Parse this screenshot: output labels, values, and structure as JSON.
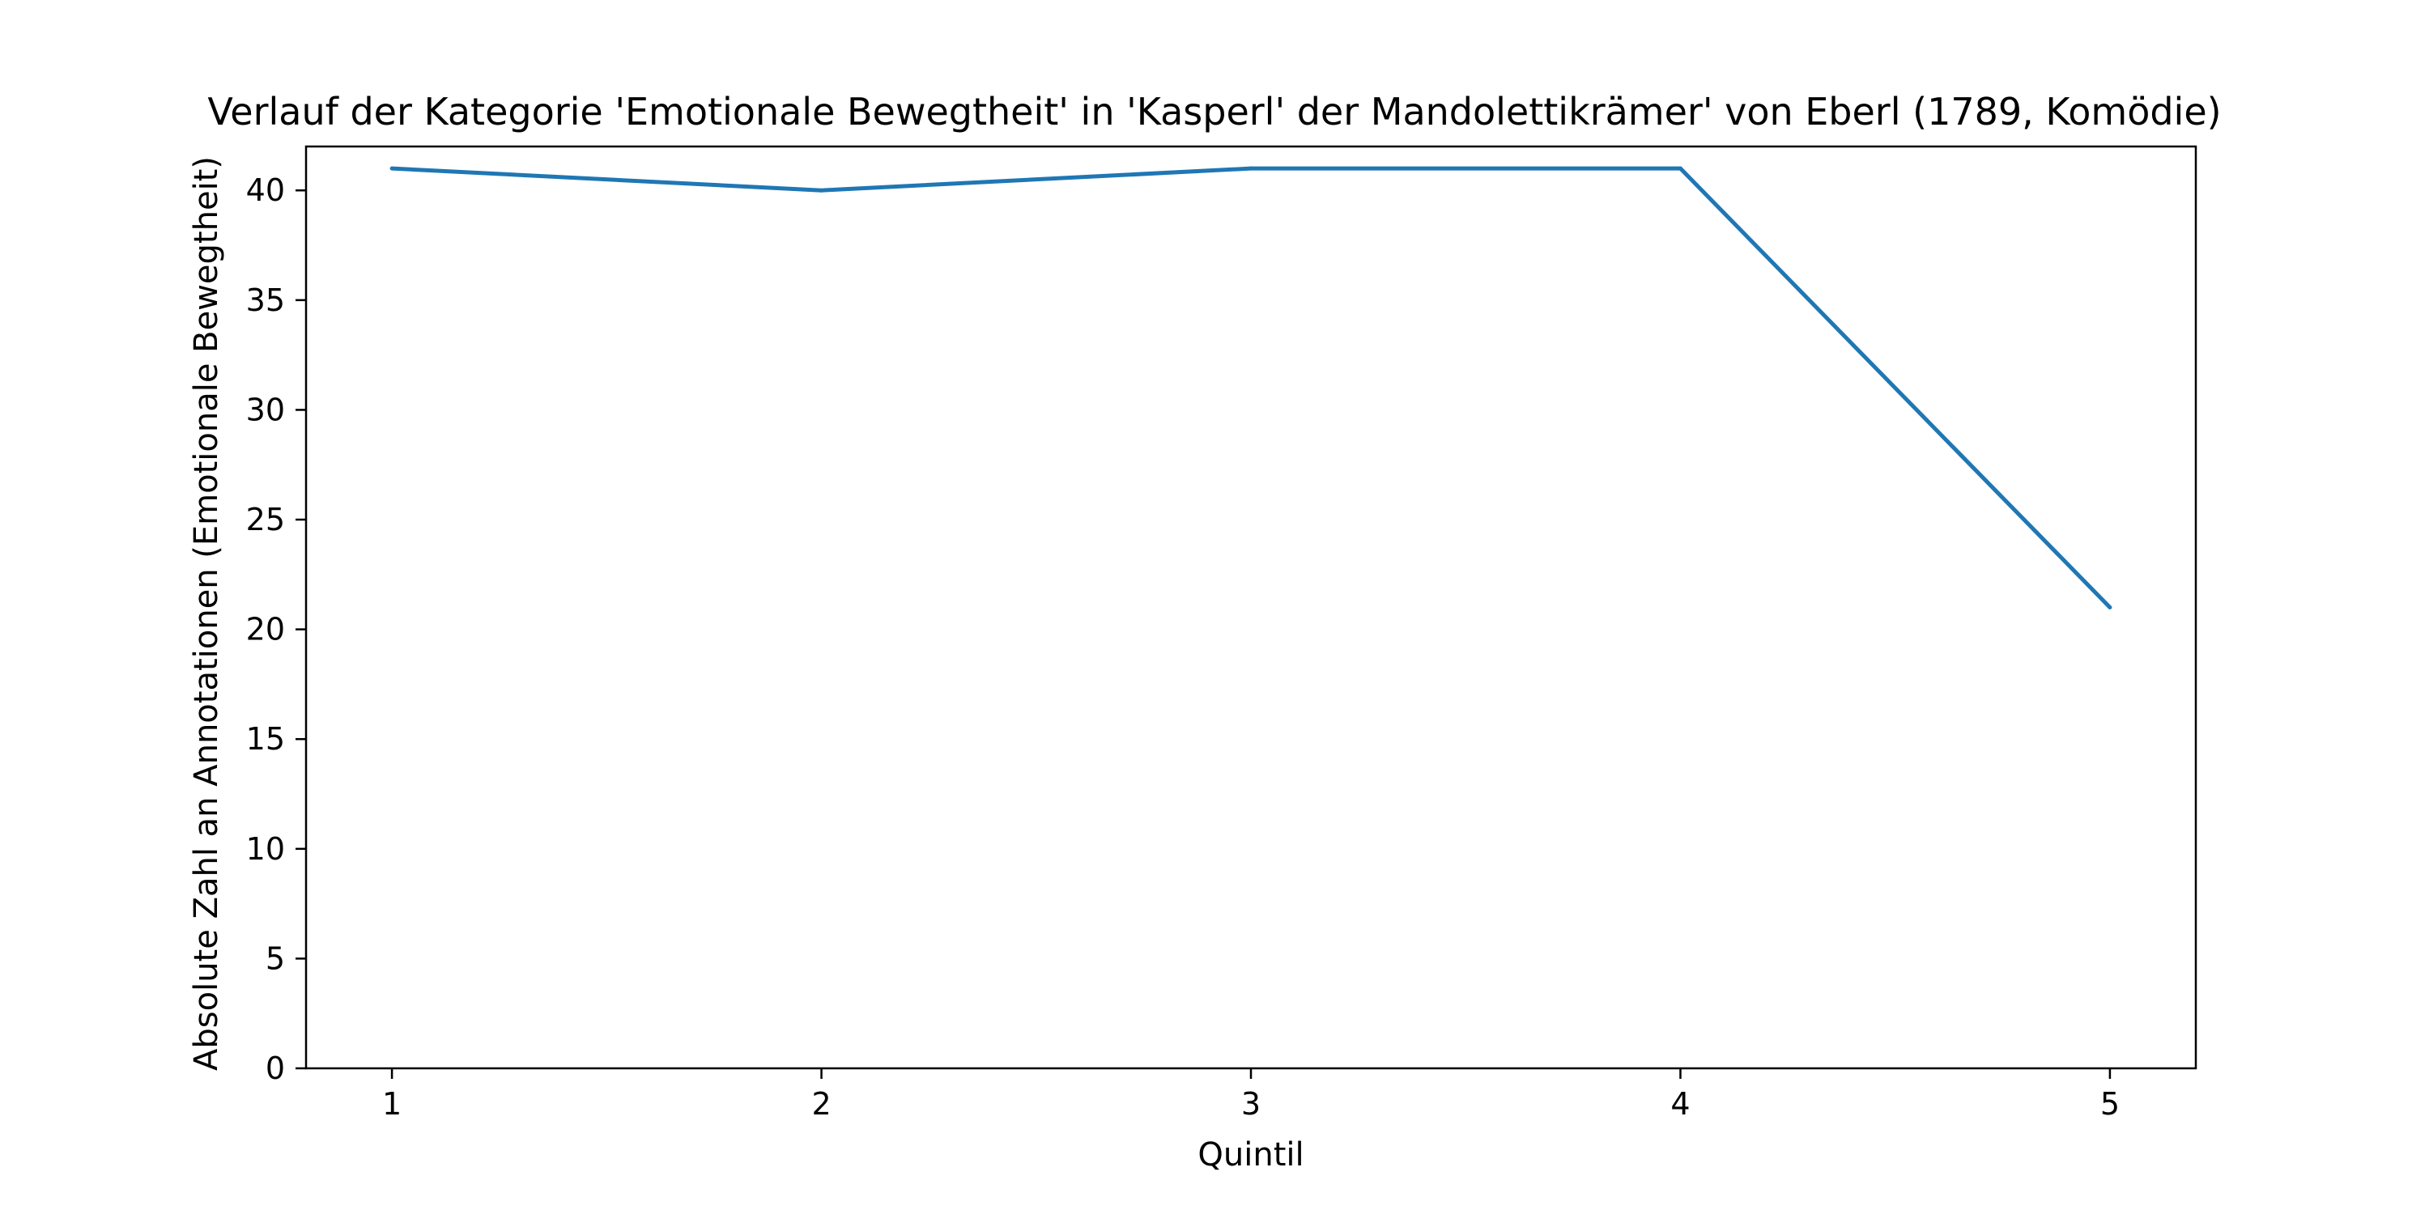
{
  "chart_data": {
    "type": "line",
    "title": "Verlauf der Kategorie 'Emotionale Bewegtheit' in 'Kasperl' der Mandolettikrämer' von Eberl (1789, Komödie)",
    "xlabel": "Quintil",
    "ylabel": "Absolute Zahl an Annotationen (Emotionale Bewegtheit)",
    "x": [
      1,
      2,
      3,
      4,
      5
    ],
    "series": [
      {
        "values": [
          41,
          40,
          41,
          41,
          21
        ],
        "color": "#1f77b4"
      }
    ],
    "xlim": [
      0.8,
      5.2
    ],
    "ylim": [
      0,
      42
    ],
    "x_ticks": [
      "1",
      "2",
      "3",
      "4",
      "5"
    ],
    "y_ticks": [
      "0",
      "5",
      "10",
      "15",
      "20",
      "25",
      "30",
      "35",
      "40"
    ],
    "grid": false,
    "legend": "none"
  }
}
